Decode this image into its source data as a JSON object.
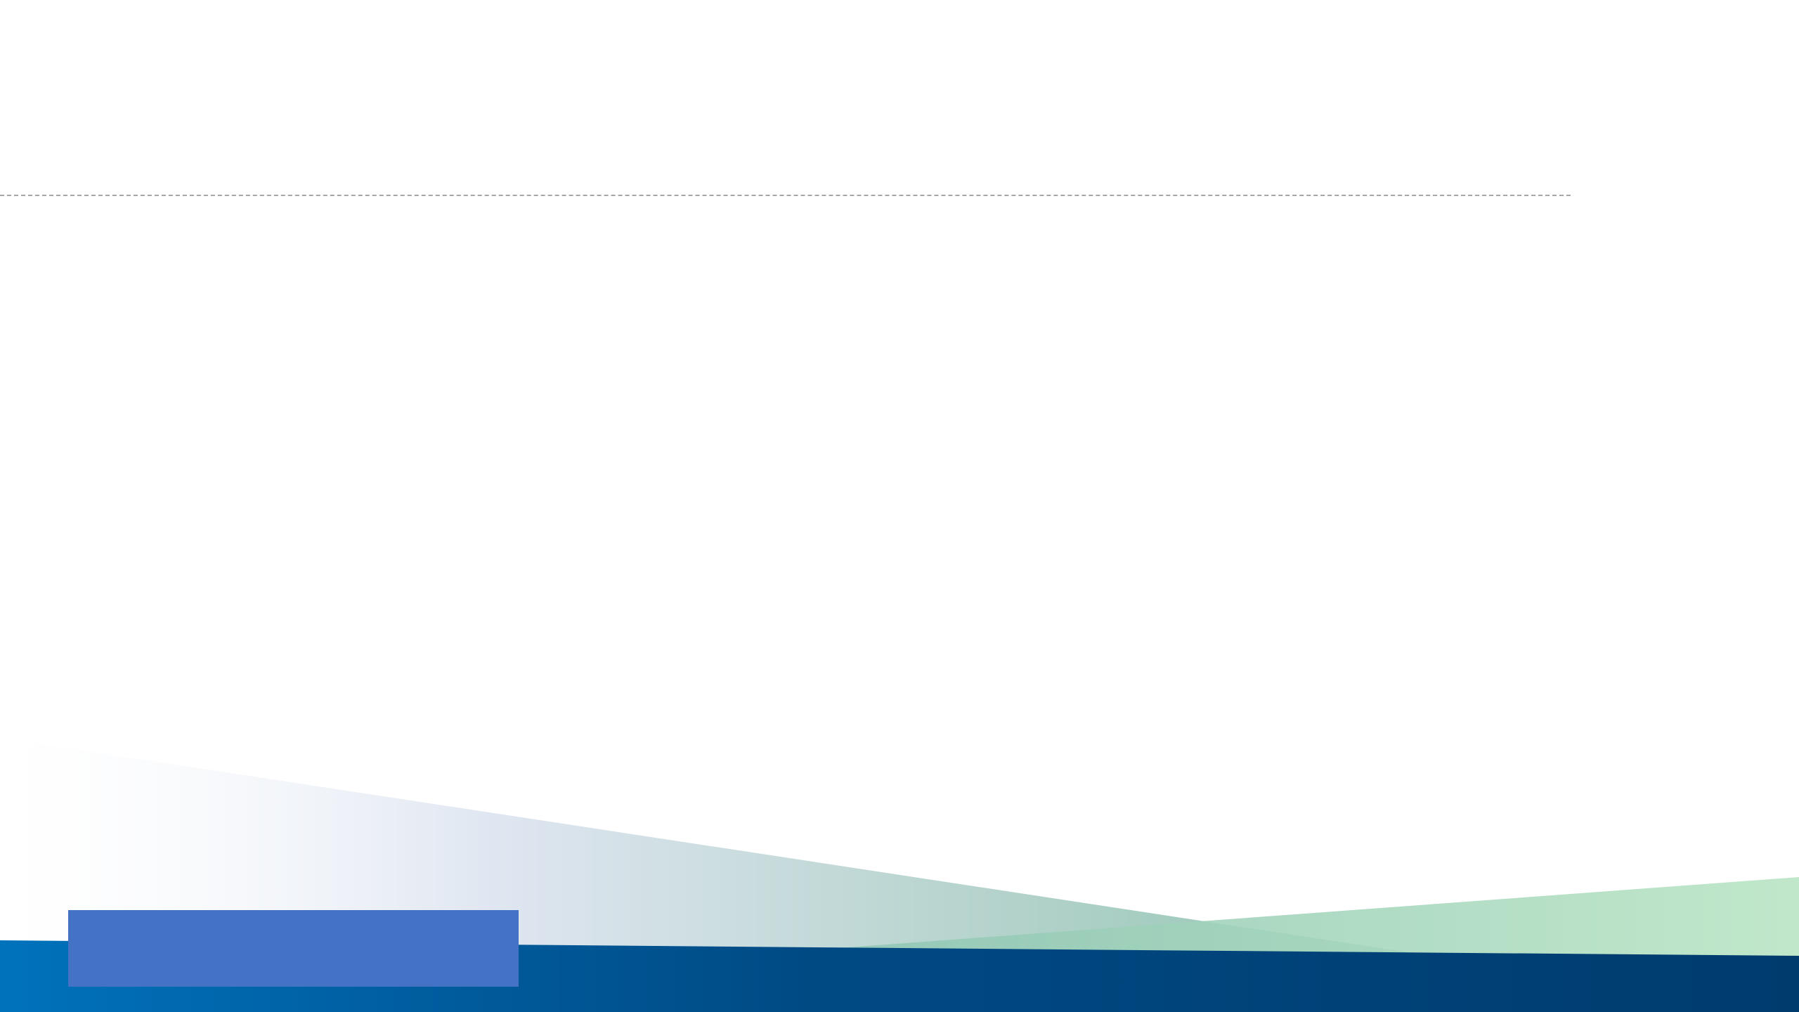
{
  "slide": {
    "title": "",
    "body": "",
    "footer_label": ""
  },
  "theme": {
    "band_dark": "#003b6e",
    "band_light": "#0072bc",
    "wedge_green": "#bfe6c9",
    "wedge_blue": "#d6e2ee",
    "footer_box": "#4472c4",
    "divider": "#a6a6a6"
  }
}
